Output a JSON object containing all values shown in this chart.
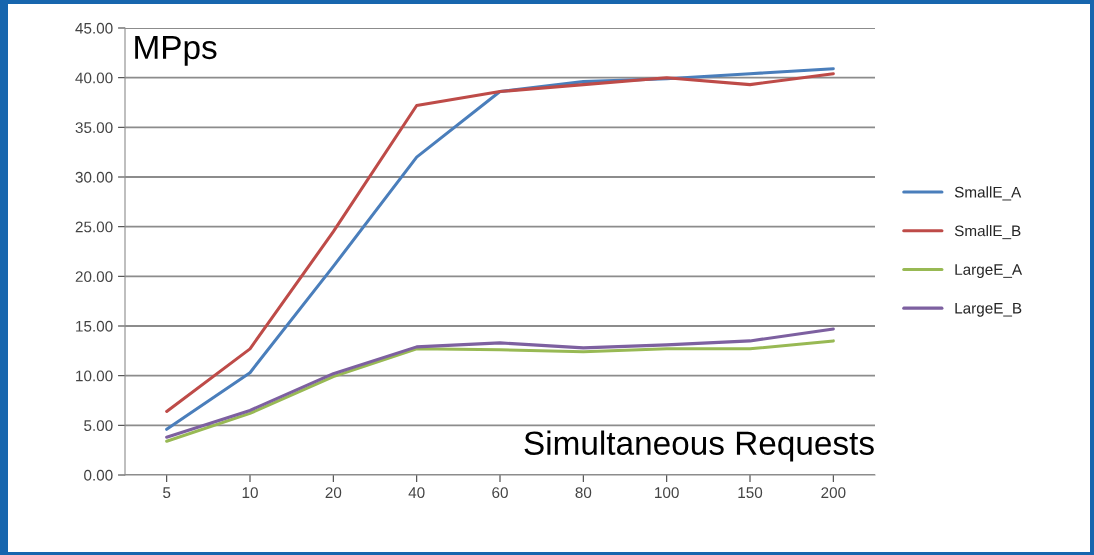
{
  "chart_data": {
    "type": "line",
    "xlabel": "Simultaneous Requests",
    "ylabel": "MPps",
    "categories": [
      "5",
      "10",
      "20",
      "40",
      "60",
      "80",
      "100",
      "150",
      "200"
    ],
    "series": [
      {
        "name": "SmallE_A",
        "color": "#4a7ebb",
        "values": [
          4.6,
          10.3,
          21.0,
          32.0,
          38.6,
          39.6,
          39.9,
          40.4,
          40.9
        ]
      },
      {
        "name": "SmallE_B",
        "color": "#be4b48",
        "values": [
          6.4,
          12.7,
          24.5,
          37.2,
          38.6,
          39.3,
          40.0,
          39.3,
          40.4
        ]
      },
      {
        "name": "LargeE_A",
        "color": "#98b954",
        "values": [
          3.4,
          6.2,
          9.9,
          12.7,
          12.6,
          12.4,
          12.7,
          12.7,
          13.5
        ]
      },
      {
        "name": "LargeE_B",
        "color": "#7d60a0",
        "values": [
          3.8,
          6.5,
          10.2,
          12.9,
          13.3,
          12.8,
          13.1,
          13.5,
          14.7
        ]
      }
    ],
    "ylim": [
      0,
      45
    ],
    "yticks": [
      {
        "value": 0,
        "label": "0.00"
      },
      {
        "value": 5,
        "label": "5.00"
      },
      {
        "value": 10,
        "label": "10.00"
      },
      {
        "value": 15,
        "label": "15.00"
      },
      {
        "value": 20,
        "label": "20.00"
      },
      {
        "value": 25,
        "label": "25.00"
      },
      {
        "value": 30,
        "label": "30.00"
      },
      {
        "value": 35,
        "label": "35.00"
      },
      {
        "value": 40,
        "label": "40.00"
      },
      {
        "value": 45,
        "label": "45.00"
      }
    ],
    "grid": "y",
    "legend": "right",
    "marker": "none",
    "line_style": "solid"
  }
}
